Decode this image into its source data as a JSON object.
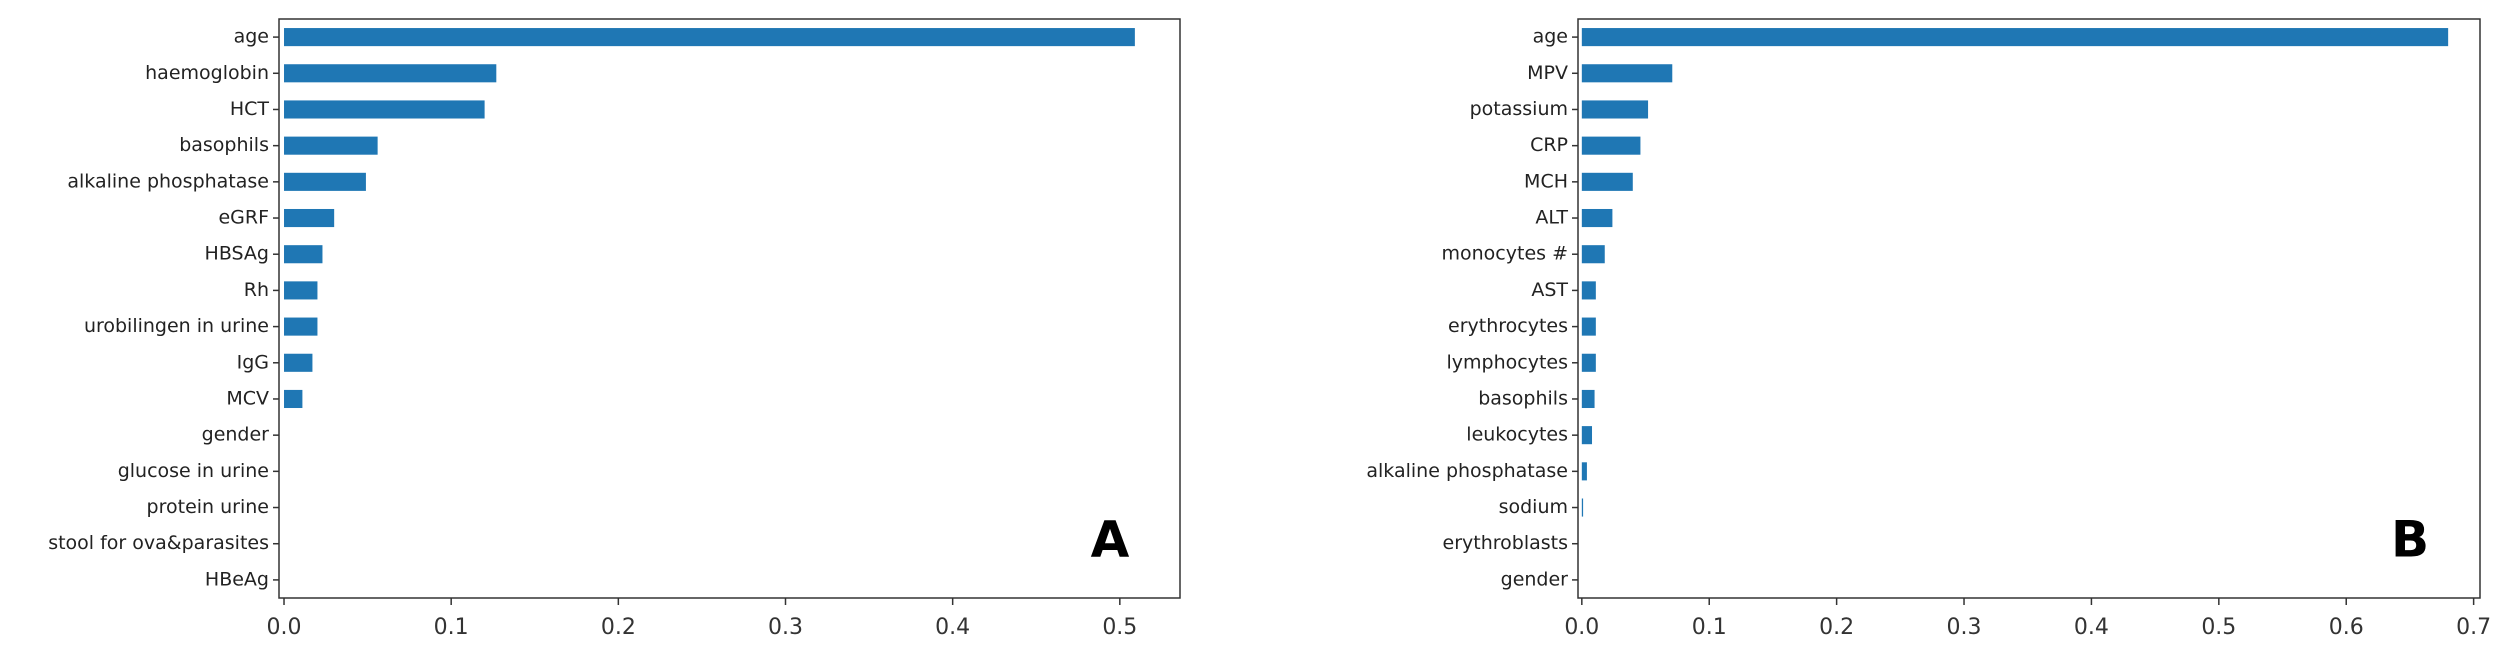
{
  "chart_data": [
    {
      "type": "barh",
      "annotation": "A",
      "color": "#1f77b4",
      "categories": [
        "age",
        "haemoglobin",
        "HCT",
        "basophils",
        "alkaline phosphatase",
        "eGRF",
        "HBSAg",
        "Rh",
        "urobilingen in urine",
        "IgG",
        "MCV",
        "gender",
        "glucose in urine",
        "protein urine",
        "stool for ova&parasites",
        "HBeAg"
      ],
      "values": [
        0.509,
        0.127,
        0.12,
        0.056,
        0.049,
        0.03,
        0.023,
        0.02,
        0.02,
        0.017,
        0.011,
        0,
        0,
        0,
        0,
        0
      ],
      "xlim": [
        -0.003,
        0.536
      ],
      "xticks": [
        {
          "value": 0,
          "label": "0.0"
        },
        0.1,
        0.2,
        0.3,
        0.4,
        0.5
      ]
    },
    {
      "type": "barh",
      "annotation": "B",
      "color": "#1f77b4",
      "categories": [
        "age",
        "MPV",
        "potassium",
        "CRP",
        "MCH",
        "ALT",
        "monocytes #",
        "AST",
        "erythrocytes",
        "lymphocytes",
        "basophils",
        "leukocytes",
        "alkaline phosphatase",
        "sodium",
        "erythroblasts",
        "gender"
      ],
      "values": [
        0.68,
        0.071,
        0.052,
        0.046,
        0.04,
        0.024,
        0.018,
        0.011,
        0.011,
        0.011,
        0.01,
        0.008,
        0.004,
        0.001,
        0,
        0
      ],
      "xlim": [
        -0.003,
        0.705
      ],
      "xticks": [
        {
          "value": 0,
          "label": "0.0"
        },
        0.1,
        0.2,
        0.3,
        0.4,
        0.5,
        0.6,
        0.7
      ]
    }
  ]
}
